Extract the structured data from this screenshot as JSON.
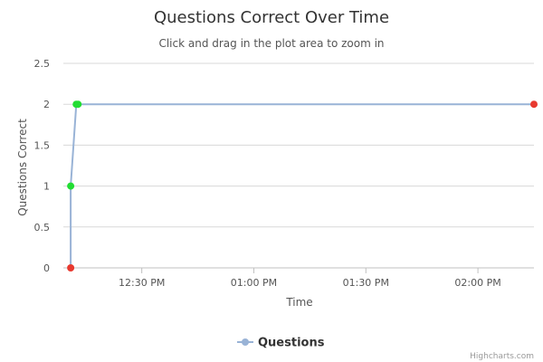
{
  "chart_data": {
    "type": "line",
    "title": "Questions Correct Over Time",
    "subtitle": "Click and drag in the plot area to zoom in",
    "xlabel": "Time",
    "ylabel": "Questions Correct",
    "x_tick_labels": [
      "12:30 PM",
      "01:00 PM",
      "01:30 PM",
      "02:00 PM"
    ],
    "y_ticks": [
      "0",
      "0.5",
      "1",
      "1.5",
      "2",
      "2.5"
    ],
    "ylim": [
      0,
      2.5
    ],
    "xlim": [
      "12:09 PM",
      "02:15 PM"
    ],
    "grid": true,
    "legend": "bottom",
    "series": [
      {
        "name": "Questions",
        "color": "#99b3d6",
        "points": [
          {
            "x": "12:10 PM",
            "y": 0,
            "marker_color": "#e8392f"
          },
          {
            "x": "12:10 PM",
            "y": 1,
            "marker_color": "#22dd33"
          },
          {
            "x": "12:11 PM",
            "y": 2,
            "marker_color": "#22dd33"
          },
          {
            "x": "12:11 PM",
            "y": 2,
            "marker_color": "#22dd33"
          },
          {
            "x": "02:15 PM",
            "y": 2,
            "marker_color": "#e8392f"
          }
        ]
      }
    ],
    "credits": "Highcharts.com"
  }
}
